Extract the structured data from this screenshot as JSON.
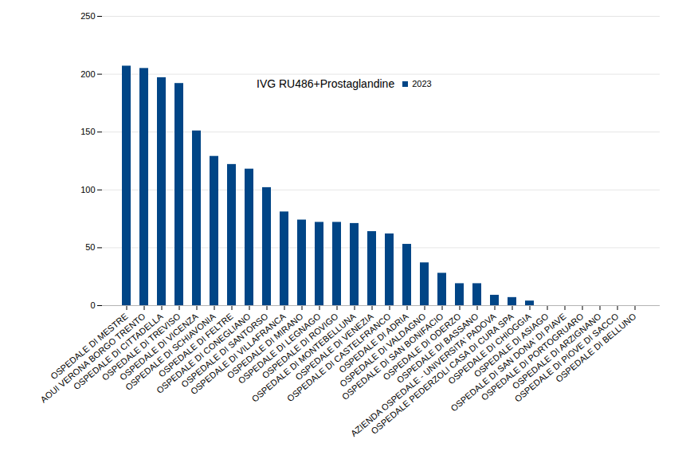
{
  "chart_data": {
    "type": "bar",
    "title": "IVG RU486+Prostaglandine",
    "categories": [
      "OSPEDALE DI MESTRE",
      "AOUI VERONA BORGO TRENTO",
      "OSPEDALE DI CITTADELLA",
      "OSPEDALE DI TREVISO",
      "OSPEDALE DI VICENZA",
      "OSPEDALE DI SCHIAVONIA",
      "OSPEDALE DI FELTRE",
      "OSPEDALE DI CONEGLIANO",
      "OSPEDALE DI SANTORSO",
      "OSPEDALE DI VILLAFRANCA",
      "OSPEDALE DI MIRANO",
      "OSPEDALE DI LEGNAGO",
      "OSPEDALE DI ROVIGO",
      "OSPEDALE DI MONTEBELLUNA",
      "OSPEDALE DI VENEZIA",
      "OSPEDALE DI CASTELFRANCO",
      "OSPEDALE DI ADRIA",
      "OSPEDALE DI VALDAGNO",
      "OSPEDALE DI SAN BONIFACIO",
      "OSPEDALE DI ODERZO",
      "OSPEDALE DI BASSANO",
      "AZIENDA OSPEDALE - UNIVERSITA' PADOVA",
      "OSPEDALE PEDERZOLI CASA DI CURA SPA",
      "OSPEDALE DI CHIOGGIA",
      "OSPEDALE DI ASIAGO",
      "OSPEDALE DI SAN DONA' DI PIAVE",
      "OSPEDALE DI PORTOGRUARO",
      "OSPEDALE DI ARZIGNANO",
      "OSPEDALE DI PIOVE DI SACCO",
      "OSPEDALE DI BELLUNO"
    ],
    "series": [
      {
        "name": "2023",
        "color": "#004586",
        "values": [
          207,
          205,
          197,
          192,
          151,
          129,
          122,
          118,
          102,
          81,
          74,
          72,
          72,
          71,
          64,
          62,
          53,
          37,
          28,
          19,
          19,
          9,
          7,
          4,
          0,
          0,
          0,
          0,
          0,
          0
        ]
      }
    ],
    "ylim": [
      0,
      250
    ],
    "yticks": [
      0,
      50,
      100,
      150,
      200,
      250
    ],
    "grid": true,
    "legend": "top"
  }
}
